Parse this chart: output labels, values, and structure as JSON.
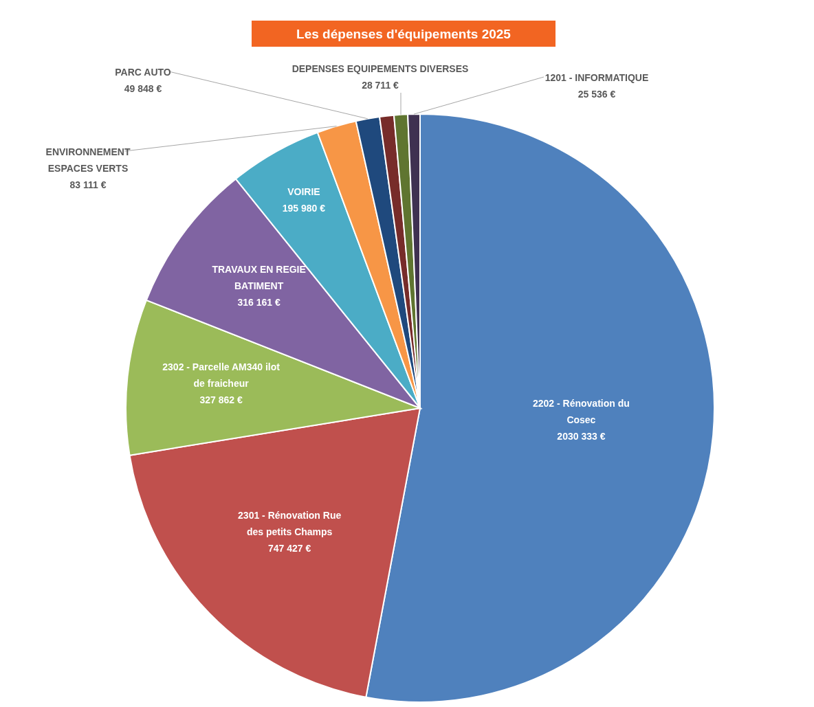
{
  "chart_data": {
    "type": "pie",
    "title": "Les dépenses d'équipements 2025",
    "categories": [
      "2202 - Rénovation du Cosec",
      "2301 - Rénovation Rue des petits Champs",
      "2302 - Parcelle AM340 ilot de fraicheur",
      "TRAVAUX EN REGIE BATIMENT",
      "VOIRIE",
      "ENVIRONNEMENT ESPACES VERTS",
      "PARC AUTO",
      null,
      "DEPENSES EQUIPEMENTS DIVERSES",
      "1201 - INFORMATIQUE"
    ],
    "values": [
      2030333,
      747427,
      327862,
      316161,
      195980,
      83111,
      49848,
      30000,
      28711,
      25536
    ],
    "value_labels": [
      "2030 333 €",
      "747 427 €",
      "327 862 €",
      "316 161 €",
      "195 980 €",
      "83 111 €",
      "49 848 €",
      null,
      "28 711 €",
      "25 536 €"
    ],
    "colors": [
      "#4f81bd",
      "#c0504d",
      "#9bbb59",
      "#8064a2",
      "#4bacc6",
      "#f79646",
      "#1f497d",
      "#772c2a",
      "#5f7530",
      "#3f3151"
    ]
  }
}
